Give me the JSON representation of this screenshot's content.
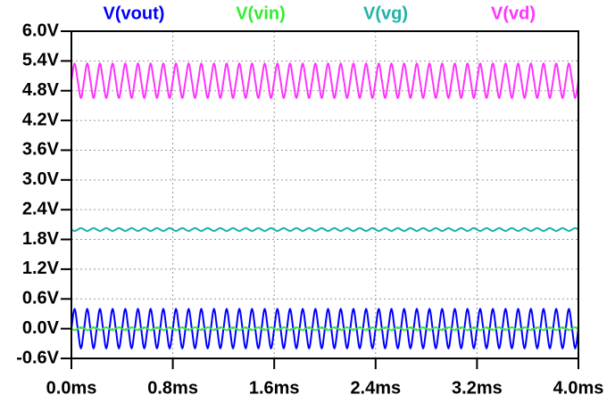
{
  "chart_data": {
    "type": "line",
    "x": [
      0,
      0.025,
      0.05,
      0.075,
      0.1,
      0.125,
      0.15,
      0.175,
      0.2,
      0.225,
      0.25,
      0.275,
      0.3,
      0.325,
      0.35,
      0.375,
      0.4,
      0.425,
      0.45,
      0.475,
      0.5,
      0.525,
      0.55,
      0.575,
      0.6,
      0.625,
      0.65,
      0.675,
      0.7,
      0.725,
      0.75,
      0.775,
      0.8,
      0.825,
      0.85,
      0.875,
      0.9,
      0.925,
      0.95,
      0.975,
      1,
      1.025,
      1.05,
      1.075,
      1.1,
      1.125,
      1.15,
      1.175,
      1.2,
      1.225,
      1.25,
      1.275,
      1.3,
      1.325,
      1.35,
      1.375,
      1.4,
      1.425,
      1.45,
      1.475,
      1.5,
      1.525,
      1.55,
      1.575,
      1.6,
      1.625,
      1.65,
      1.675,
      1.7,
      1.725,
      1.75,
      1.775,
      1.8,
      1.825,
      1.85,
      1.875,
      1.9,
      1.925,
      1.95,
      1.975,
      2,
      2.025,
      2.05,
      2.075,
      2.1,
      2.125,
      2.15,
      2.175,
      2.2,
      2.225,
      2.25,
      2.275,
      2.3,
      2.325,
      2.35,
      2.375,
      2.4,
      2.425,
      2.45,
      2.475,
      2.5,
      2.525,
      2.55,
      2.575,
      2.6,
      2.625,
      2.65,
      2.675,
      2.7,
      2.725,
      2.75,
      2.775,
      2.8,
      2.825,
      2.85,
      2.875,
      2.9,
      2.925,
      2.95,
      2.975,
      3,
      3.025,
      3.05,
      3.075,
      3.1,
      3.125,
      3.15,
      3.175,
      3.2,
      3.225,
      3.25,
      3.275,
      3.3,
      3.325,
      3.35,
      3.375,
      3.4,
      3.425,
      3.45,
      3.475,
      3.5,
      3.525,
      3.55,
      3.575,
      3.6,
      3.625,
      3.65,
      3.675,
      3.7,
      3.725,
      3.75,
      3.775,
      3.8,
      3.825,
      3.85,
      3.875,
      3.9,
      3.925,
      3.95,
      3.975,
      4
    ],
    "series": [
      {
        "name": "V(vout)",
        "color": "#0000ff",
        "values": [
          0,
          0.4,
          0,
          -0.4,
          0,
          0.4,
          0,
          -0.4,
          0,
          0.4,
          0,
          -0.4,
          0,
          0.4,
          0,
          -0.4,
          0,
          0.4,
          0,
          -0.4,
          0,
          0.4,
          0,
          -0.4,
          0,
          0.4,
          0,
          -0.4,
          0,
          0.4,
          0,
          -0.4,
          0,
          0.4,
          0,
          -0.4,
          0,
          0.4,
          0,
          -0.4,
          0,
          0.4,
          0,
          -0.4,
          0,
          0.4,
          0,
          -0.4,
          0,
          0.4,
          0,
          -0.4,
          0,
          0.4,
          0,
          -0.4,
          0,
          0.4,
          0,
          -0.4,
          0,
          0.4,
          0,
          -0.4,
          0,
          0.4,
          0,
          -0.4,
          0,
          0.4,
          0,
          -0.4,
          0,
          0.4,
          0,
          -0.4,
          0,
          0.4,
          0,
          -0.4,
          0,
          0.4,
          0,
          -0.4,
          0,
          0.4,
          0,
          -0.4,
          0,
          0.4,
          0,
          -0.4,
          0,
          0.4,
          0,
          -0.4,
          0,
          0.4,
          0,
          -0.4,
          0,
          0.4,
          0,
          -0.4,
          0,
          0.4,
          0,
          -0.4,
          0,
          0.4,
          0,
          -0.4,
          0,
          0.4,
          0,
          -0.4,
          0,
          0.4,
          0,
          -0.4,
          0,
          0.4,
          0,
          -0.4,
          0,
          0.4,
          0,
          -0.4,
          0,
          0.4,
          0,
          -0.4,
          0,
          0.4,
          0,
          -0.4,
          0,
          0.4,
          0,
          -0.4,
          0,
          0.4,
          0,
          -0.4,
          0,
          0.4,
          0,
          -0.4,
          0,
          0.4,
          0,
          -0.4,
          0,
          0.4,
          0,
          -0.4,
          0,
          0.4,
          0,
          -0.4,
          0
        ]
      },
      {
        "name": "V(vin)",
        "color": "#33ee33",
        "values": [
          0,
          -0.03,
          0,
          0.03,
          0,
          -0.03,
          0,
          0.03,
          0,
          -0.03,
          0,
          0.03,
          0,
          -0.03,
          0,
          0.03,
          0,
          -0.03,
          0,
          0.03,
          0,
          -0.03,
          0,
          0.03,
          0,
          -0.03,
          0,
          0.03,
          0,
          -0.03,
          0,
          0.03,
          0,
          -0.03,
          0,
          0.03,
          0,
          -0.03,
          0,
          0.03,
          0,
          -0.03,
          0,
          0.03,
          0,
          -0.03,
          0,
          0.03,
          0,
          -0.03,
          0,
          0.03,
          0,
          -0.03,
          0,
          0.03,
          0,
          -0.03,
          0,
          0.03,
          0,
          -0.03,
          0,
          0.03,
          0,
          -0.03,
          0,
          0.03,
          0,
          -0.03,
          0,
          0.03,
          0,
          -0.03,
          0,
          0.03,
          0,
          -0.03,
          0,
          0.03,
          0,
          -0.03,
          0,
          0.03,
          0,
          -0.03,
          0,
          0.03,
          0,
          -0.03,
          0,
          0.03,
          0,
          -0.03,
          0,
          0.03,
          0,
          -0.03,
          0,
          0.03,
          0,
          -0.03,
          0,
          0.03,
          0,
          -0.03,
          0,
          0.03,
          0,
          -0.03,
          0,
          0.03,
          0,
          -0.03,
          0,
          0.03,
          0,
          -0.03,
          0,
          0.03,
          0,
          -0.03,
          0,
          0.03,
          0,
          -0.03,
          0,
          0.03,
          0,
          -0.03,
          0,
          0.03,
          0,
          -0.03,
          0,
          0.03,
          0,
          -0.03,
          0,
          0.03,
          0,
          -0.03,
          0,
          0.03,
          0,
          -0.03,
          0,
          0.03,
          0,
          -0.03,
          0,
          0.03,
          0,
          -0.03,
          0,
          0.03,
          0,
          -0.03,
          0,
          0.03,
          0
        ]
      },
      {
        "name": "V(vg)",
        "color": "#1fb3a6",
        "values": [
          2,
          1.97,
          2,
          2.03,
          2,
          1.97,
          2,
          2.03,
          2,
          1.97,
          2,
          2.03,
          2,
          1.97,
          2,
          2.03,
          2,
          1.97,
          2,
          2.03,
          2,
          1.97,
          2,
          2.03,
          2,
          1.97,
          2,
          2.03,
          2,
          1.97,
          2,
          2.03,
          2,
          1.97,
          2,
          2.03,
          2,
          1.97,
          2,
          2.03,
          2,
          1.97,
          2,
          2.03,
          2,
          1.97,
          2,
          2.03,
          2,
          1.97,
          2,
          2.03,
          2,
          1.97,
          2,
          2.03,
          2,
          1.97,
          2,
          2.03,
          2,
          1.97,
          2,
          2.03,
          2,
          1.97,
          2,
          2.03,
          2,
          1.97,
          2,
          2.03,
          2,
          1.97,
          2,
          2.03,
          2,
          1.97,
          2,
          2.03,
          2,
          1.97,
          2,
          2.03,
          2,
          1.97,
          2,
          2.03,
          2,
          1.97,
          2,
          2.03,
          2,
          1.97,
          2,
          2.03,
          2,
          1.97,
          2,
          2.03,
          2,
          1.97,
          2,
          2.03,
          2,
          1.97,
          2,
          2.03,
          2,
          1.97,
          2,
          2.03,
          2,
          1.97,
          2,
          2.03,
          2,
          1.97,
          2,
          2.03,
          2,
          1.97,
          2,
          2.03,
          2,
          1.97,
          2,
          2.03,
          2,
          1.97,
          2,
          2.03,
          2,
          1.97,
          2,
          2.03,
          2,
          1.97,
          2,
          2.03,
          2,
          1.97,
          2,
          2.03,
          2,
          1.97,
          2,
          2.03,
          2,
          1.97,
          2,
          2.03,
          2,
          1.97,
          2,
          2.03,
          2,
          1.97,
          2,
          2.03,
          2
        ]
      },
      {
        "name": "V(vd)",
        "color": "#ff33ff",
        "values": [
          5,
          5.35,
          5,
          4.65,
          5,
          5.35,
          5,
          4.65,
          5,
          5.35,
          5,
          4.65,
          5,
          5.35,
          5,
          4.65,
          5,
          5.35,
          5,
          4.65,
          5,
          5.35,
          5,
          4.65,
          5,
          5.35,
          5,
          4.65,
          5,
          5.35,
          5,
          4.65,
          5,
          5.35,
          5,
          4.65,
          5,
          5.35,
          5,
          4.65,
          5,
          5.35,
          5,
          4.65,
          5,
          5.35,
          5,
          4.65,
          5,
          5.35,
          5,
          4.65,
          5,
          5.35,
          5,
          4.65,
          5,
          5.35,
          5,
          4.65,
          5,
          5.35,
          5,
          4.65,
          5,
          5.35,
          5,
          4.65,
          5,
          5.35,
          5,
          4.65,
          5,
          5.35,
          5,
          4.65,
          5,
          5.35,
          5,
          4.65,
          5,
          5.35,
          5,
          4.65,
          5,
          5.35,
          5,
          4.65,
          5,
          5.35,
          5,
          4.65,
          5,
          5.35,
          5,
          4.65,
          5,
          5.35,
          5,
          4.65,
          5,
          5.35,
          5,
          4.65,
          5,
          5.35,
          5,
          4.65,
          5,
          5.35,
          5,
          4.65,
          5,
          5.35,
          5,
          4.65,
          5,
          5.35,
          5,
          4.65,
          5,
          5.35,
          5,
          4.65,
          5,
          5.35,
          5,
          4.65,
          5,
          5.35,
          5,
          4.65,
          5,
          5.35,
          5,
          4.65,
          5,
          5.35,
          5,
          4.65,
          5,
          5.35,
          5,
          4.65,
          5,
          5.35,
          5,
          4.65,
          5,
          5.35,
          5,
          4.65,
          5,
          5.35,
          5,
          4.65,
          5,
          5.35,
          5,
          4.65,
          5
        ]
      }
    ],
    "xlim": [
      0,
      4
    ],
    "xticks": [
      {
        "value": 0,
        "label": "0.0ms"
      },
      {
        "value": 0.8,
        "label": "0.8ms"
      },
      {
        "value": 1.6,
        "label": "1.6ms"
      },
      {
        "value": 2.4,
        "label": "2.4ms"
      },
      {
        "value": 3.2,
        "label": "3.2ms"
      },
      {
        "value": 4,
        "label": "4.0ms"
      }
    ],
    "ylim": [
      -0.6,
      6
    ],
    "yticks": [
      {
        "value": -0.6,
        "label": "-0.6V"
      },
      {
        "value": 0,
        "label": "0.0V"
      },
      {
        "value": 0.6,
        "label": "0.6V"
      },
      {
        "value": 1.2,
        "label": "1.2V"
      },
      {
        "value": 1.8,
        "label": "1.8V"
      },
      {
        "value": 2.4,
        "label": "2.4V"
      },
      {
        "value": 3,
        "label": "3.0V"
      },
      {
        "value": 3.6,
        "label": "3.6V"
      },
      {
        "value": 4.2,
        "label": "4.2V"
      },
      {
        "value": 4.8,
        "label": "4.8V"
      },
      {
        "value": 5.4,
        "label": "5.4V"
      },
      {
        "value": 6,
        "label": "6.0V"
      }
    ],
    "grid": true
  }
}
